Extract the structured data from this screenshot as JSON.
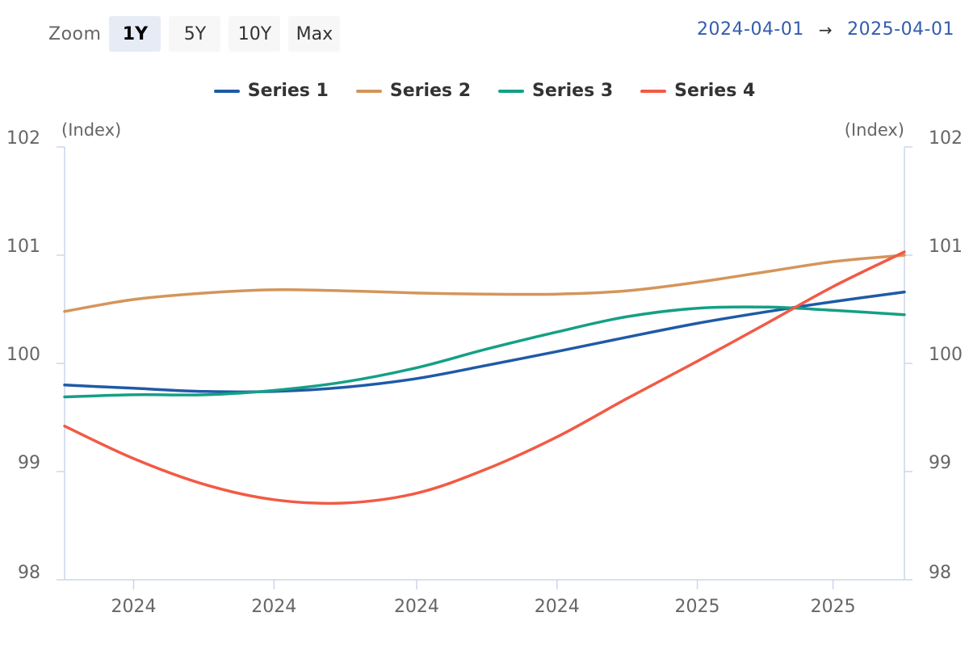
{
  "toolbar": {
    "zoom_label": "Zoom",
    "buttons": [
      "1Y",
      "5Y",
      "10Y",
      "Max"
    ],
    "selected": "1Y"
  },
  "range": {
    "from": "2024-04-01",
    "arrow": "→",
    "to": "2025-04-01"
  },
  "colors": {
    "series": [
      "#1f5aa6",
      "#d4955a",
      "#14a085",
      "#f25a45"
    ],
    "range_text": "#335cad",
    "axis": "#ccd6eb"
  },
  "chart_data": {
    "type": "line",
    "x": [
      "2024-04-01",
      "2024-05-01",
      "2024-06-01",
      "2024-07-01",
      "2024-08-01",
      "2024-09-01",
      "2024-10-01",
      "2024-11-01",
      "2024-12-01",
      "2025-01-01",
      "2025-02-01",
      "2025-03-01",
      "2025-04-01"
    ],
    "x_tick_labels": [
      "2024",
      "2024",
      "2024",
      "2024",
      "2025",
      "2025"
    ],
    "y_left_label": "(Index)",
    "y_right_label": "(Index)",
    "ylim": [
      98,
      102
    ],
    "yticks": [
      98,
      99,
      100,
      101,
      102
    ],
    "legend_position": "top-center",
    "series": [
      {
        "name": "Series 1",
        "values": [
          99.8,
          99.77,
          99.74,
          99.74,
          99.78,
          99.86,
          99.98,
          100.11,
          100.24,
          100.37,
          100.48,
          100.57,
          100.66
        ]
      },
      {
        "name": "Series 2",
        "values": [
          100.48,
          100.59,
          100.65,
          100.68,
          100.67,
          100.65,
          100.64,
          100.64,
          100.67,
          100.75,
          100.85,
          100.94,
          101.0
        ]
      },
      {
        "name": "Series 3",
        "values": [
          99.69,
          99.71,
          99.71,
          99.75,
          99.83,
          99.96,
          100.13,
          100.29,
          100.43,
          100.51,
          100.52,
          100.49,
          100.45
        ]
      },
      {
        "name": "Series 4",
        "values": [
          99.42,
          99.12,
          98.88,
          98.74,
          98.71,
          98.8,
          99.02,
          99.32,
          99.67,
          100.02,
          100.38,
          100.71,
          101.03
        ]
      }
    ]
  }
}
